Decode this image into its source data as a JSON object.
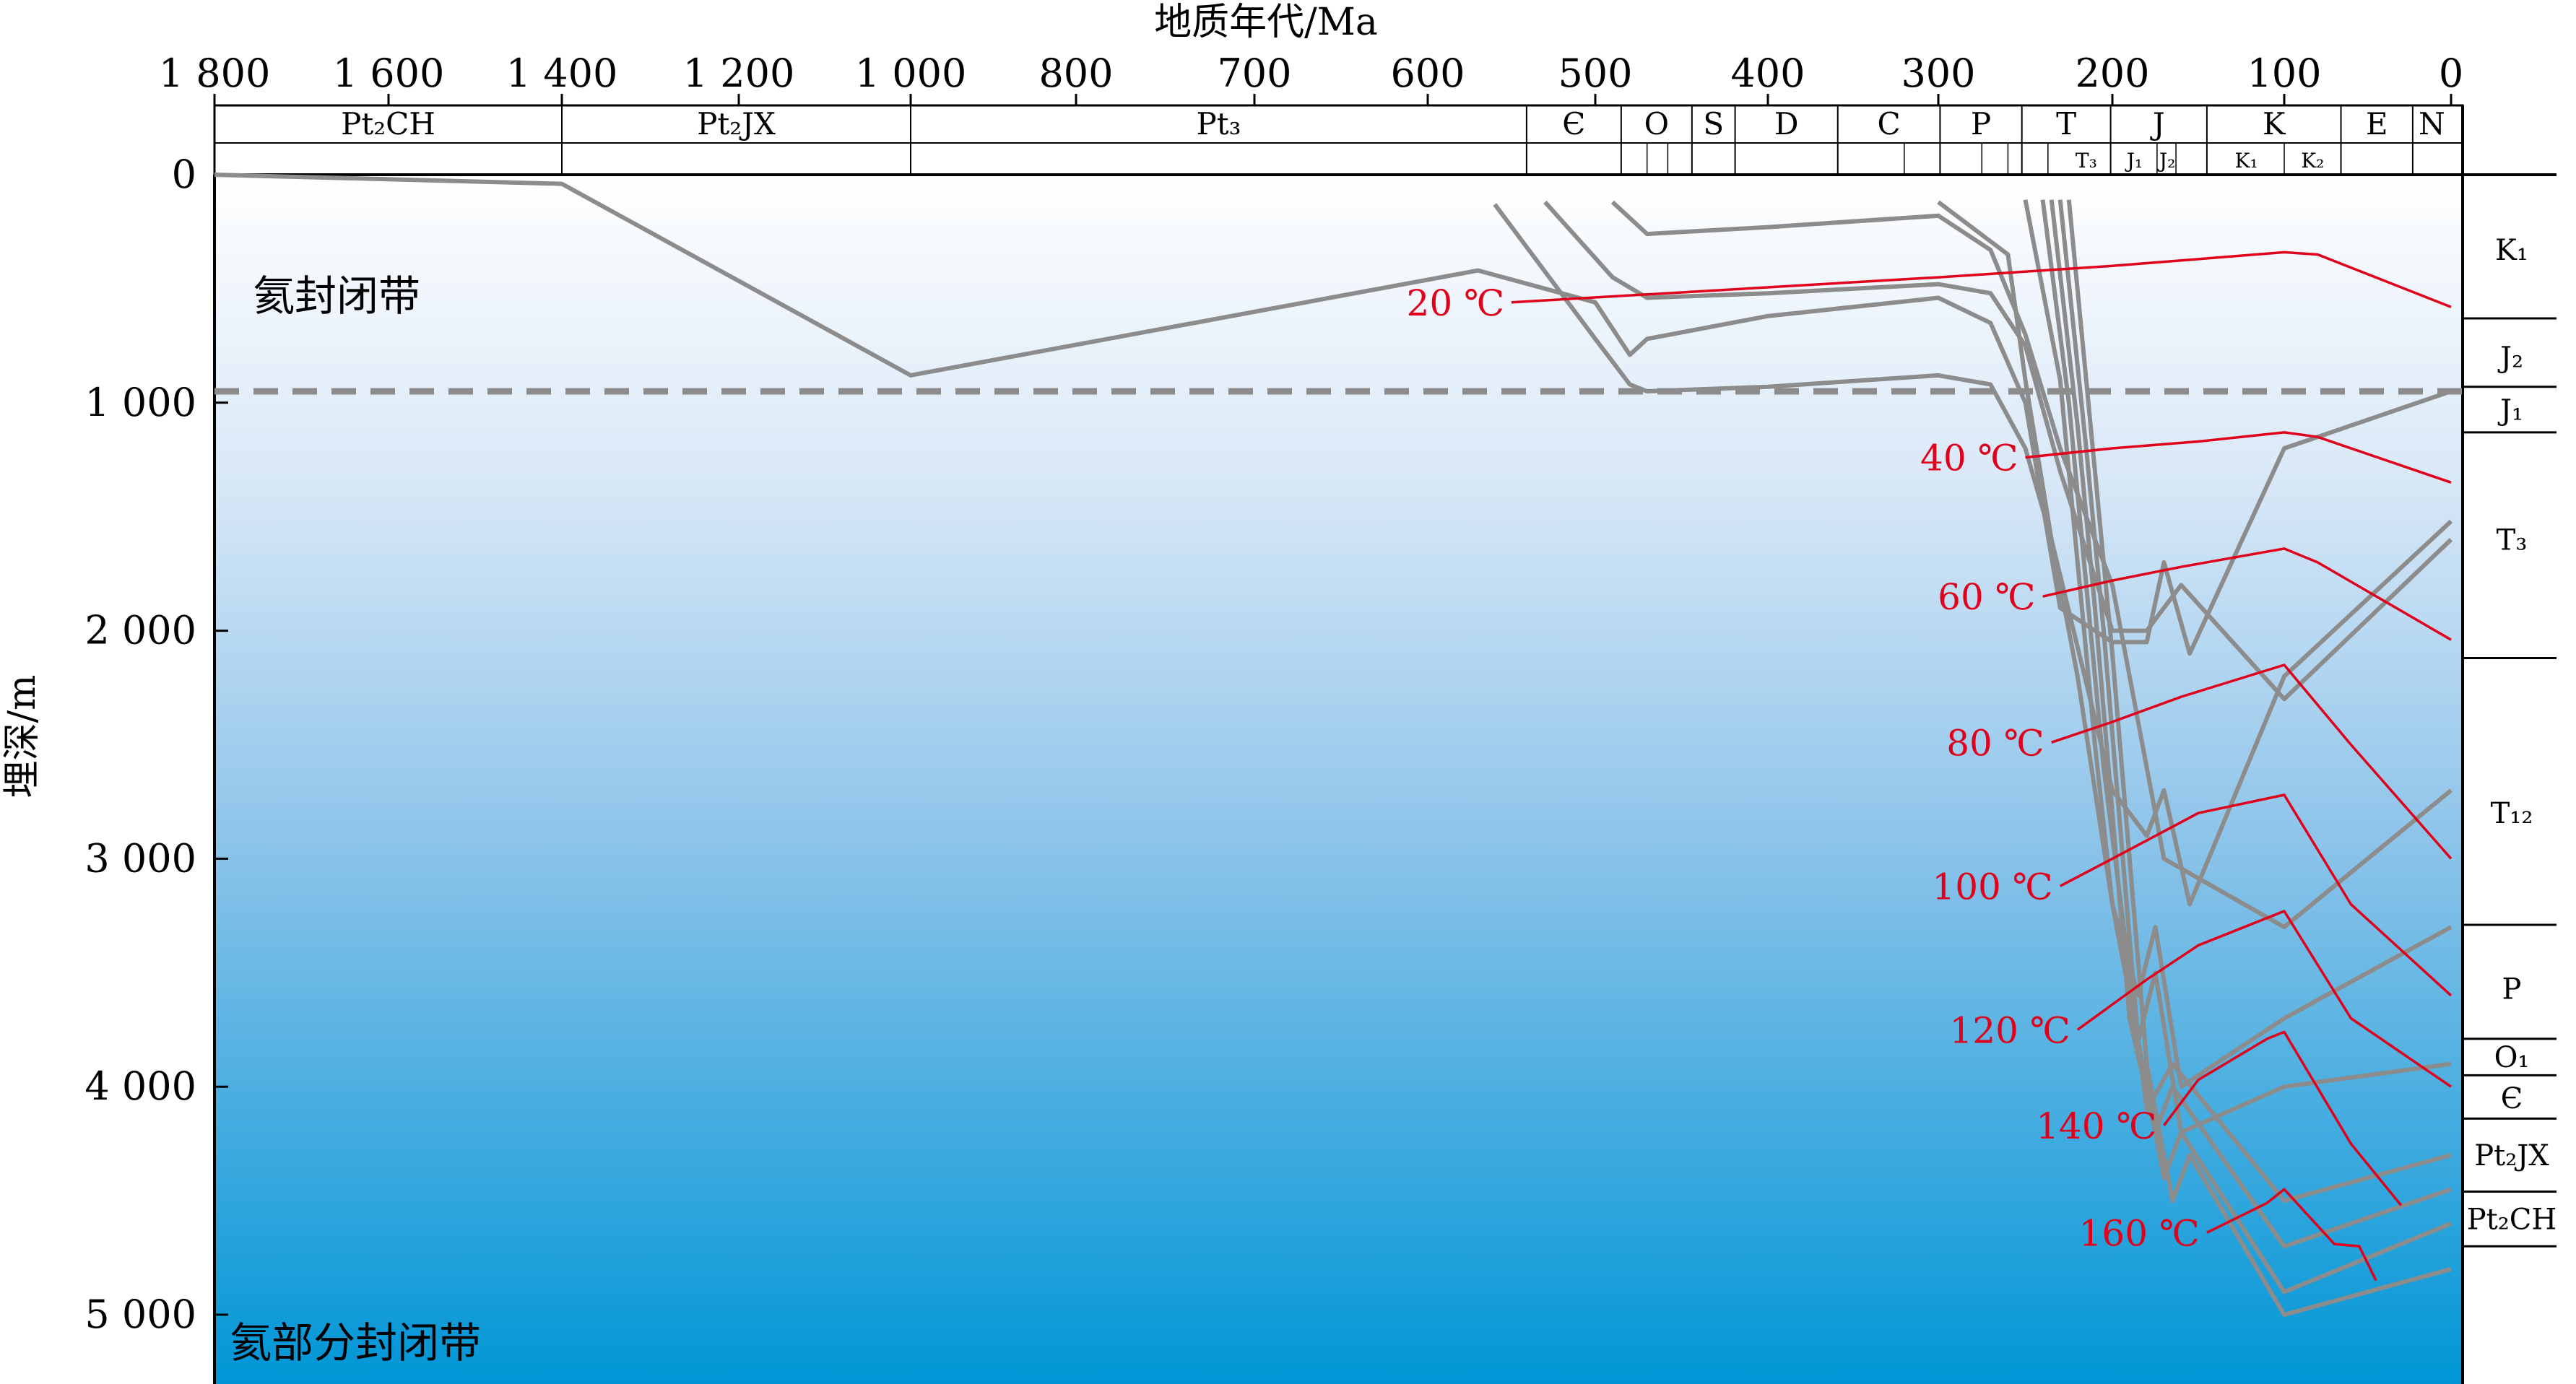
{
  "axes": {
    "x_title": "地质年代/Ma",
    "y_title": "埋深/m",
    "x_ticks": [
      "1 800",
      "1 600",
      "1 400",
      "1 200",
      "1 000",
      "800",
      "700",
      "600",
      "500",
      "400",
      "300",
      "200",
      "100",
      "0"
    ],
    "y_ticks": [
      "0",
      "1 000",
      "2 000",
      "3 000",
      "4 000",
      "5 000"
    ]
  },
  "periods": [
    "Pt₂CH",
    "Pt₂JX",
    "Pt₃",
    "Є",
    "O",
    "S",
    "D",
    "C",
    "P",
    "T",
    "J",
    "K",
    "E",
    "N"
  ],
  "epochs": [
    "T₃",
    "J₁",
    "J₂",
    "K₁",
    "K₂"
  ],
  "zones": {
    "upper": "氦封闭带",
    "lower": "氦部分封闭带"
  },
  "isotherms": [
    "20 ℃",
    "40 ℃",
    "60 ℃",
    "80 ℃",
    "100 ℃",
    "120 ℃",
    "140 ℃",
    "160 ℃"
  ],
  "layers": [
    "K₁",
    "J₂",
    "J₁",
    "T₃",
    "T₁₂",
    "P",
    "O₁",
    "Є",
    "Pt₂JX",
    "Pt₂CH"
  ],
  "colors": {
    "burial_line": "#8c8c8c",
    "isotherm": "#e0001b",
    "gradient_top": "#ffffff",
    "gradient_bottom": "#0096d6",
    "boundary_dash": "#8c8c8c"
  },
  "chart_data": {
    "type": "line",
    "xlabel": "地质年代/Ma",
    "ylabel": "埋深/m",
    "xlim": [
      1800,
      0
    ],
    "ylim": [
      0,
      5300
    ],
    "x_scale": "piecewise (1800–1000 Ma compressed, 1000–0 Ma expanded)",
    "he_closure_boundary_depth_m": 950,
    "series": [
      {
        "x": [
          1800,
          1400,
          1000,
          570,
          500,
          480,
          470,
          400,
          300,
          270,
          250,
          230,
          200,
          180,
          170,
          155,
          100,
          0
        ],
        "y": [
          0,
          40,
          880,
          420,
          560,
          790,
          720,
          620,
          540,
          650,
          1000,
          1900,
          2050,
          2050,
          1700,
          2100,
          1200,
          950
        ]
      },
      {
        "x": [
          560,
          500,
          480,
          470,
          400,
          300,
          270,
          250,
          235,
          200,
          180,
          170,
          155,
          100,
          0
        ],
        "y": [
          130,
          720,
          920,
          950,
          930,
          880,
          920,
          1200,
          1600,
          2700,
          2900,
          2700,
          3200,
          2200,
          1520
        ]
      },
      {
        "x": [
          530,
          490,
          470,
          400,
          300,
          270,
          250,
          230,
          200,
          180,
          160,
          100,
          0
        ],
        "y": [
          120,
          450,
          540,
          520,
          480,
          520,
          750,
          1300,
          2000,
          2000,
          1800,
          2300,
          1600
        ]
      },
      {
        "x": [
          490,
          470,
          400,
          300,
          270,
          250,
          230,
          200,
          180,
          170,
          100,
          0
        ],
        "y": [
          120,
          260,
          230,
          180,
          330,
          700,
          1200,
          1800,
          2600,
          3000,
          3300,
          2700
        ]
      },
      {
        "x": [
          300,
          260,
          250,
          235,
          220,
          200,
          185,
          175,
          160,
          100,
          0
        ],
        "y": [
          120,
          350,
          900,
          1600,
          2200,
          3200,
          3600,
          3300,
          4000,
          3700,
          3300
        ]
      },
      {
        "x": [
          250,
          230,
          220,
          210,
          200,
          185,
          175,
          160,
          100,
          0
        ],
        "y": [
          110,
          900,
          1700,
          2500,
          3200,
          3800,
          3500,
          4200,
          4000,
          3900
        ]
      },
      {
        "x": [
          240,
          225,
          215,
          205,
          190,
          180,
          165,
          100,
          0
        ],
        "y": [
          110,
          1000,
          1800,
          2600,
          3500,
          4100,
          3900,
          4500,
          4300
        ]
      },
      {
        "x": [
          235,
          220,
          210,
          200,
          190,
          175,
          165,
          100,
          0
        ],
        "y": [
          110,
          1100,
          1900,
          2800,
          3700,
          4200,
          4000,
          4700,
          4450
        ]
      },
      {
        "x": [
          230,
          215,
          205,
          195,
          185,
          170,
          160,
          100,
          0
        ],
        "y": [
          110,
          1200,
          2000,
          2900,
          3800,
          4400,
          4200,
          4900,
          4600
        ]
      },
      {
        "x": [
          225,
          210,
          200,
          190,
          180,
          165,
          155,
          100,
          0
        ],
        "y": [
          110,
          1300,
          2100,
          3000,
          3900,
          4500,
          4300,
          5000,
          4800
        ]
      }
    ],
    "isotherm_series": [
      {
        "name": "20 ℃",
        "x": [
          550,
          300,
          200,
          100,
          80,
          0
        ],
        "y": [
          560,
          450,
          400,
          340,
          350,
          580
        ]
      },
      {
        "name": "40 ℃",
        "x": [
          250,
          200,
          150,
          100,
          80,
          0
        ],
        "y": [
          1240,
          1200,
          1170,
          1130,
          1150,
          1350
        ]
      },
      {
        "name": "60 ℃",
        "x": [
          240,
          200,
          160,
          100,
          80,
          0
        ],
        "y": [
          1850,
          1780,
          1720,
          1640,
          1700,
          2040
        ]
      },
      {
        "name": "80 ℃",
        "x": [
          235,
          200,
          160,
          100,
          60,
          0
        ],
        "y": [
          2490,
          2400,
          2290,
          2150,
          2500,
          3000
        ]
      },
      {
        "name": "100 ℃",
        "x": [
          230,
          200,
          150,
          100,
          60,
          0
        ],
        "y": [
          3120,
          3000,
          2800,
          2720,
          3200,
          3600
        ]
      },
      {
        "name": "120 ℃",
        "x": [
          220,
          180,
          150,
          100,
          60,
          0
        ],
        "y": [
          3750,
          3530,
          3380,
          3230,
          3700,
          4000
        ]
      },
      {
        "name": "140 ℃",
        "x": [
          170,
          150,
          110,
          100,
          60,
          30
        ],
        "y": [
          4170,
          3970,
          3790,
          3760,
          4250,
          4520
        ]
      },
      {
        "name": "160 ℃",
        "x": [
          145,
          110,
          100,
          70,
          55,
          45
        ],
        "y": [
          4640,
          4510,
          4450,
          4690,
          4700,
          4850
        ]
      }
    ]
  }
}
